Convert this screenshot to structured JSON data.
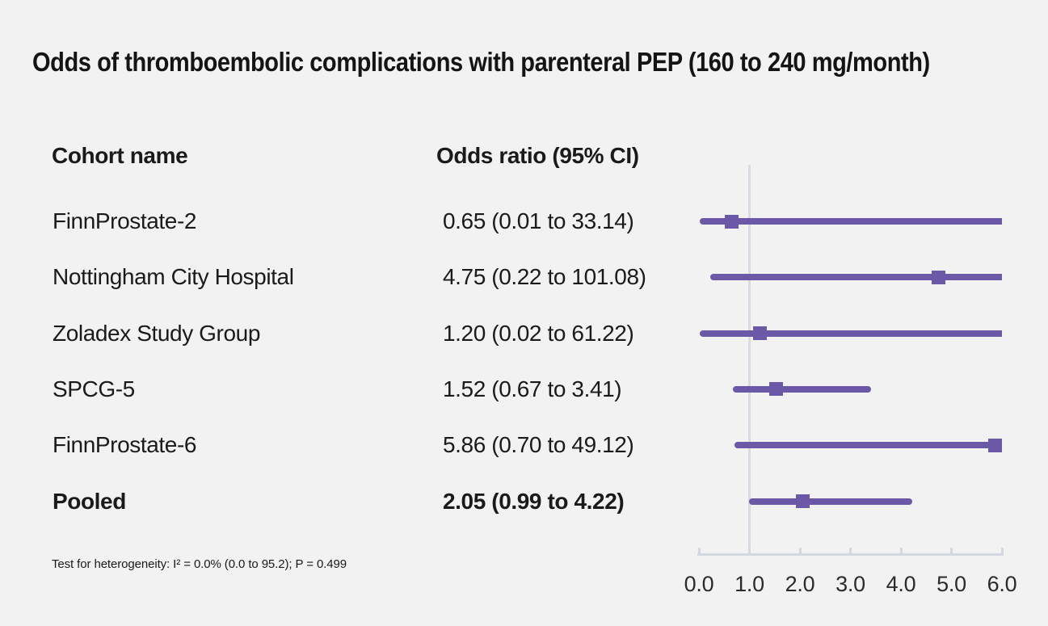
{
  "title": "Odds of thromboembolic complications with parenteral PEP (160 to 240 mg/month)",
  "columns": {
    "cohort": "Cohort name",
    "odds": "Odds ratio (95% CI)"
  },
  "footnote": "Test for heterogeneity: I² = 0.0% (0.0 to 95.2); P = 0.499",
  "colors": {
    "accent_purple": "#6B59A7",
    "reference_line": "#D8DBE3",
    "axis": "#D3D8E1",
    "background": "#F2F2F2",
    "text": "#1A1A1A"
  },
  "chart_data": {
    "type": "scatter",
    "subtype": "forest-plot",
    "title": "Odds of thromboembolic complications with parenteral PEP (160 to 240 mg/month)",
    "xlim": [
      0.0,
      6.0
    ],
    "x_ticks": [
      0.0,
      1.0,
      2.0,
      3.0,
      4.0,
      5.0,
      6.0
    ],
    "x_tick_labels": [
      "0.0",
      "1.0",
      "2.0",
      "3.0",
      "4.0",
      "5.0",
      "6.0"
    ],
    "reference_line_x": 1.0,
    "grid": false,
    "legend": "none",
    "rows": [
      {
        "cohort": "FinnProstate-2",
        "label": "0.65 (0.01 to 33.14)",
        "or": 0.65,
        "ci_low": 0.01,
        "ci_high": 33.14,
        "bold": false
      },
      {
        "cohort": "Nottingham City Hospital",
        "label": "4.75 (0.22 to 101.08)",
        "or": 4.75,
        "ci_low": 0.22,
        "ci_high": 101.08,
        "bold": false
      },
      {
        "cohort": "Zoladex Study Group",
        "label": "1.20 (0.02 to 61.22)",
        "or": 1.2,
        "ci_low": 0.02,
        "ci_high": 61.22,
        "bold": false
      },
      {
        "cohort": "SPCG-5",
        "label": "1.52 (0.67 to 3.41)",
        "or": 1.52,
        "ci_low": 0.67,
        "ci_high": 3.41,
        "bold": false
      },
      {
        "cohort": "FinnProstate-6",
        "label": "5.86 (0.70 to 49.12)",
        "or": 5.86,
        "ci_low": 0.7,
        "ci_high": 49.12,
        "bold": false
      },
      {
        "cohort": "Pooled",
        "label": "2.05 (0.99 to 4.22)",
        "or": 2.05,
        "ci_low": 0.99,
        "ci_high": 4.22,
        "bold": true
      }
    ],
    "heterogeneity": {
      "I2": "0.0%",
      "I2_ci": "0.0 to 95.2",
      "P": "0.499"
    }
  }
}
